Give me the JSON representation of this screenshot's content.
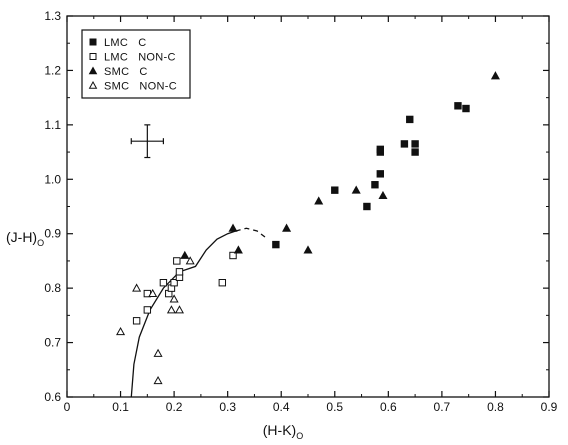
{
  "chart_data": {
    "type": "scatter",
    "xlabel": "(H-K)",
    "xlabel_sub": "O",
    "ylabel": "(J-H)",
    "ylabel_sub": "O",
    "xlim": [
      0,
      0.9
    ],
    "ylim": [
      0.6,
      1.3
    ],
    "x_ticks": [
      "0",
      "0.1",
      "0.2",
      "0.3",
      "0.4",
      "0.5",
      "0.6",
      "0.7",
      "0.8",
      "0.9"
    ],
    "y_ticks": [
      "0.6",
      "0.7",
      "0.8",
      "0.9",
      "1.0",
      "1.1",
      "1.2",
      "1.3"
    ],
    "grid": false,
    "legend_position": "top-left",
    "series": [
      {
        "name": "LMC   C",
        "marker": "filled-square",
        "points": [
          [
            0.39,
            0.88
          ],
          [
            0.5,
            0.98
          ],
          [
            0.56,
            0.95
          ],
          [
            0.575,
            0.99
          ],
          [
            0.585,
            1.01
          ],
          [
            0.585,
            1.05
          ],
          [
            0.585,
            1.055
          ],
          [
            0.64,
            1.11
          ],
          [
            0.63,
            1.065
          ],
          [
            0.65,
            1.065
          ],
          [
            0.65,
            1.05
          ],
          [
            0.73,
            1.135
          ],
          [
            0.745,
            1.13
          ]
        ]
      },
      {
        "name": "LMC   NON-C",
        "marker": "open-square",
        "points": [
          [
            0.13,
            0.74
          ],
          [
            0.15,
            0.79
          ],
          [
            0.15,
            0.76
          ],
          [
            0.18,
            0.81
          ],
          [
            0.19,
            0.79
          ],
          [
            0.195,
            0.8
          ],
          [
            0.2,
            0.81
          ],
          [
            0.21,
            0.82
          ],
          [
            0.21,
            0.83
          ],
          [
            0.205,
            0.85
          ],
          [
            0.29,
            0.81
          ],
          [
            0.31,
            0.86
          ]
        ]
      },
      {
        "name": "SMC   C",
        "marker": "filled-triangle",
        "points": [
          [
            0.22,
            0.86
          ],
          [
            0.31,
            0.91
          ],
          [
            0.32,
            0.87
          ],
          [
            0.41,
            0.91
          ],
          [
            0.45,
            0.87
          ],
          [
            0.47,
            0.96
          ],
          [
            0.54,
            0.98
          ],
          [
            0.59,
            0.97
          ],
          [
            0.8,
            1.19
          ]
        ]
      },
      {
        "name": "SMC   NON-C",
        "marker": "open-triangle",
        "points": [
          [
            0.1,
            0.72
          ],
          [
            0.13,
            0.8
          ],
          [
            0.16,
            0.79
          ],
          [
            0.17,
            0.68
          ],
          [
            0.17,
            0.63
          ],
          [
            0.195,
            0.76
          ],
          [
            0.2,
            0.78
          ],
          [
            0.21,
            0.76
          ],
          [
            0.23,
            0.85
          ]
        ]
      }
    ],
    "error_bar": {
      "x": 0.15,
      "y": 1.07,
      "xerr": 0.03,
      "yerr": 0.03
    },
    "curve_solid": [
      [
        0.12,
        0.6
      ],
      [
        0.125,
        0.66
      ],
      [
        0.135,
        0.71
      ],
      [
        0.155,
        0.76
      ],
      [
        0.18,
        0.8
      ],
      [
        0.21,
        0.83
      ],
      [
        0.225,
        0.835
      ],
      [
        0.24,
        0.84
      ],
      [
        0.26,
        0.87
      ],
      [
        0.28,
        0.89
      ],
      [
        0.3,
        0.9
      ],
      [
        0.315,
        0.905
      ]
    ],
    "curve_dashed": [
      [
        0.315,
        0.905
      ],
      [
        0.335,
        0.91
      ],
      [
        0.355,
        0.905
      ],
      [
        0.375,
        0.89
      ]
    ]
  }
}
